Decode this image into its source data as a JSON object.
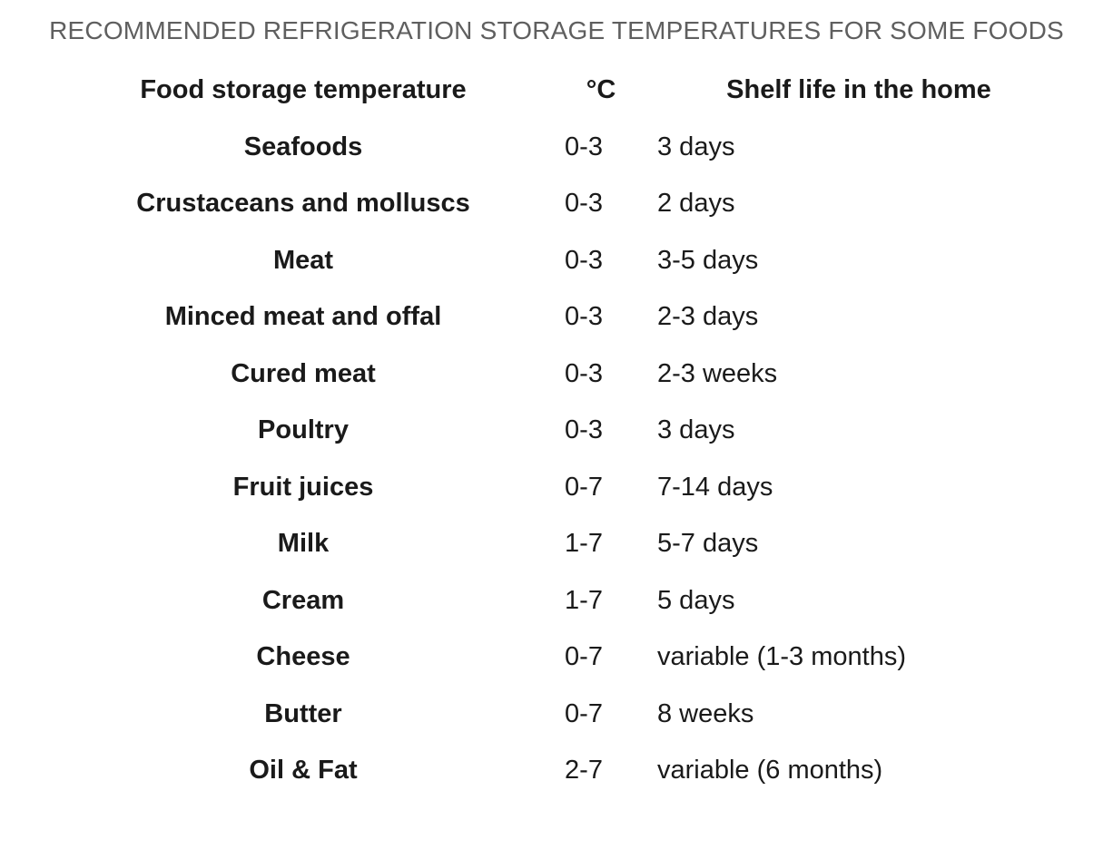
{
  "table": {
    "caption": "RECOMMENDED REFRIGERATION STORAGE TEMPERATURES FOR SOME FOODS",
    "headers": {
      "food": "Food storage temperature",
      "temperature": "°C",
      "shelf_life": "Shelf life in the home"
    },
    "rows": [
      {
        "food": "Seafoods",
        "temperature": "0-3",
        "shelf_life": "3 days"
      },
      {
        "food": "Crustaceans and molluscs",
        "temperature": "0-3",
        "shelf_life": "2 days"
      },
      {
        "food": "Meat",
        "temperature": "0-3",
        "shelf_life": "3-5 days"
      },
      {
        "food": "Minced meat and offal",
        "temperature": "0-3",
        "shelf_life": "2-3 days"
      },
      {
        "food": "Cured meat",
        "temperature": "0-3",
        "shelf_life": "2-3 weeks"
      },
      {
        "food": "Poultry",
        "temperature": "0-3",
        "shelf_life": "3 days"
      },
      {
        "food": "Fruit juices",
        "temperature": "0-7",
        "shelf_life": "7-14 days"
      },
      {
        "food": "Milk",
        "temperature": "1-7",
        "shelf_life": "5-7 days"
      },
      {
        "food": "Cream",
        "temperature": "1-7",
        "shelf_life": "5 days"
      },
      {
        "food": "Cheese",
        "temperature": "0-7",
        "shelf_life": "variable (1-3 months)"
      },
      {
        "food": "Butter",
        "temperature": "0-7",
        "shelf_life": "8 weeks"
      },
      {
        "food": "Oil & Fat",
        "temperature": "2-7",
        "shelf_life": "variable (6 months)"
      }
    ]
  }
}
